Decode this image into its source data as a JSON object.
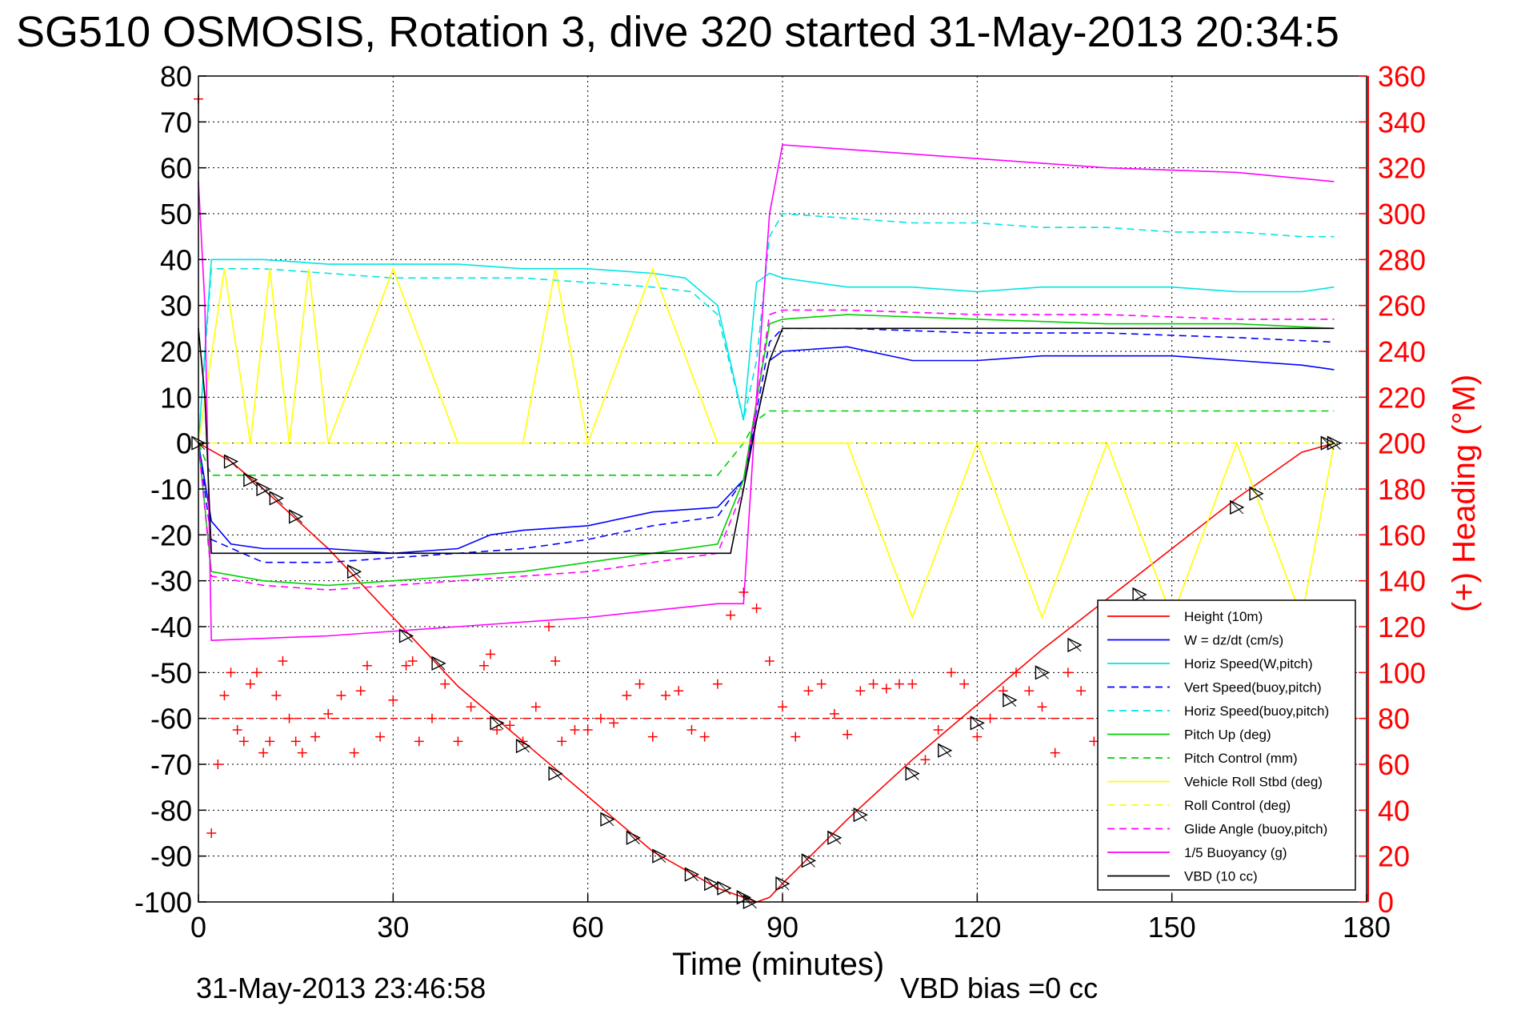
{
  "title": "SG510 OSMOSIS, Rotation 3, dive 320 started 31-May-2013 20:34:5",
  "footer_left": "31-May-2013 23:46:58",
  "footer_right": "VBD bias =0 cc",
  "chart_data": {
    "type": "line",
    "xlabel": "Time (minutes)",
    "ylabel_right": "(+) Heading (°M)",
    "xlim": [
      0,
      180
    ],
    "ylim": [
      -100,
      80
    ],
    "ylim_right": [
      0,
      360
    ],
    "xticks": [
      "0",
      "30",
      "60",
      "90",
      "120",
      "150",
      "180"
    ],
    "yticks": [
      "80",
      "70",
      "60",
      "50",
      "40",
      "30",
      "20",
      "10",
      "0",
      "-10",
      "-20",
      "-30",
      "-40",
      "-50",
      "-60",
      "-70",
      "-80",
      "-90",
      "-100"
    ],
    "yticks_right": [
      "360",
      "340",
      "320",
      "300",
      "280",
      "260",
      "240",
      "220",
      "200",
      "180",
      "160",
      "140",
      "120",
      "100",
      "80",
      "60",
      "40",
      "20",
      "0"
    ],
    "grid": true,
    "legend_position": "bottom-right",
    "series": [
      {
        "name": "Height (10m)",
        "color": "#ff0000",
        "style": "solid",
        "x": [
          0,
          5,
          10,
          20,
          30,
          40,
          50,
          60,
          70,
          80,
          84,
          86,
          88,
          90,
          100,
          110,
          120,
          130,
          140,
          150,
          160,
          170,
          175
        ],
        "y": [
          0,
          -4,
          -10,
          -23,
          -38,
          -53,
          -65,
          -77,
          -89,
          -97,
          -99,
          -100,
          -99,
          -96,
          -82,
          -69,
          -57,
          -45,
          -34,
          -23,
          -12,
          -2,
          0
        ]
      },
      {
        "name": "W = dz/dt (cm/s)",
        "color": "#0000ff",
        "style": "solid",
        "x": [
          0,
          2,
          5,
          10,
          20,
          30,
          40,
          45,
          50,
          60,
          70,
          80,
          84,
          88,
          90,
          100,
          110,
          120,
          130,
          140,
          150,
          160,
          170,
          175
        ],
        "y": [
          0,
          -17,
          -22,
          -23,
          -23,
          -24,
          -23,
          -20,
          -19,
          -18,
          -15,
          -14,
          -8,
          18,
          20,
          21,
          18,
          18,
          19,
          19,
          19,
          18,
          17,
          16
        ]
      },
      {
        "name": "Horiz Speed(W,pitch)",
        "color": "#00e5e5",
        "style": "solid",
        "x": [
          0,
          2,
          10,
          20,
          30,
          40,
          50,
          60,
          70,
          75,
          80,
          84,
          86,
          88,
          90,
          100,
          110,
          120,
          130,
          140,
          150,
          160,
          170,
          175
        ],
        "y": [
          0,
          40,
          40,
          39,
          39,
          39,
          38,
          38,
          37,
          36,
          30,
          5,
          35,
          37,
          36,
          34,
          34,
          33,
          34,
          34,
          34,
          33,
          33,
          34
        ]
      },
      {
        "name": "Vert Speed(buoy,pitch)",
        "color": "#0000ff",
        "style": "dashed",
        "x": [
          0,
          2,
          10,
          20,
          30,
          40,
          50,
          60,
          70,
          80,
          84,
          88,
          90,
          100,
          120,
          140,
          160,
          175
        ],
        "y": [
          0,
          -21,
          -26,
          -26,
          -25,
          -24,
          -23,
          -21,
          -18,
          -16,
          -8,
          22,
          25,
          25,
          24,
          24,
          23,
          22
        ]
      },
      {
        "name": "Horiz Speed(buoy,pitch)",
        "color": "#00e5e5",
        "style": "dashed",
        "x": [
          0,
          2,
          10,
          20,
          30,
          40,
          50,
          60,
          70,
          76,
          80,
          84,
          86,
          88,
          90,
          100,
          110,
          120,
          130,
          140,
          150,
          160,
          170,
          175
        ],
        "y": [
          0,
          38,
          38,
          37,
          36,
          36,
          36,
          35,
          34,
          33,
          28,
          5,
          18,
          45,
          50,
          49,
          48,
          48,
          47,
          47,
          46,
          46,
          45,
          45
        ]
      },
      {
        "name": "Pitch Up (deg)",
        "color": "#00d000",
        "style": "solid",
        "x": [
          0,
          2,
          10,
          20,
          30,
          40,
          50,
          60,
          70,
          80,
          84,
          88,
          90,
          100,
          120,
          140,
          160,
          175
        ],
        "y": [
          0,
          -28,
          -30,
          -31,
          -30,
          -29,
          -28,
          -26,
          -24,
          -22,
          -8,
          26,
          27,
          28,
          27,
          26,
          26,
          25
        ]
      },
      {
        "name": "Pitch Control (mm)",
        "color": "#00d000",
        "style": "dashed",
        "x": [
          0,
          2,
          30,
          60,
          80,
          84,
          86,
          88,
          175
        ],
        "y": [
          0,
          -7,
          -7,
          -7,
          -7,
          0,
          5,
          7,
          7
        ]
      },
      {
        "name": "Vehicle Roll Stbd (deg)",
        "color": "#ffff00",
        "style": "solid",
        "x": [
          0,
          4,
          8,
          11,
          14,
          17,
          20,
          30,
          40,
          50,
          55,
          60,
          70,
          80,
          85,
          90,
          100,
          110,
          120,
          130,
          140,
          150,
          160,
          170,
          175
        ],
        "y": [
          0,
          38,
          0,
          38,
          0,
          38,
          0,
          38,
          0,
          0,
          38,
          0,
          38,
          0,
          0,
          0,
          0,
          -38,
          0,
          -38,
          0,
          -38,
          0,
          -38,
          0
        ]
      },
      {
        "name": "Roll Control (deg)",
        "color": "#ffff00",
        "style": "dashed",
        "x": [
          0,
          20,
          40,
          60,
          80,
          85,
          90,
          120,
          150,
          175
        ],
        "y": [
          0,
          0,
          0,
          0,
          0,
          0,
          0,
          0,
          0,
          0
        ]
      },
      {
        "name": "Glide Angle (buoy,pitch)",
        "color": "#ff00ff",
        "style": "dashed",
        "x": [
          0,
          2,
          10,
          20,
          30,
          40,
          50,
          60,
          70,
          80,
          84,
          88,
          90,
          100,
          120,
          140,
          160,
          175
        ],
        "y": [
          0,
          -29,
          -31,
          -32,
          -31,
          -30,
          -29,
          -28,
          -26,
          -24,
          -10,
          28,
          29,
          29,
          28,
          28,
          27,
          27
        ]
      },
      {
        "name": "1/5 Buoyancy (g)",
        "color": "#ff00ff",
        "style": "solid",
        "x": [
          0,
          1,
          2,
          20,
          40,
          60,
          80,
          84,
          86,
          88,
          90,
          100,
          120,
          140,
          160,
          175
        ],
        "y": [
          57,
          30,
          -43,
          -42,
          -40,
          -38,
          -35,
          -35,
          10,
          50,
          65,
          64,
          62,
          60,
          59,
          57
        ]
      },
      {
        "name": "VBD (10 cc)",
        "color": "#000000",
        "style": "solid",
        "x": [
          0,
          1,
          2,
          82,
          84,
          86,
          88,
          90,
          175
        ],
        "y": [
          25,
          10,
          -24,
          -24,
          -10,
          5,
          18,
          25,
          25
        ]
      }
    ],
    "heading_series": {
      "marker": "+",
      "color": "#ff0000",
      "axis": "right",
      "x": [
        0,
        2,
        3,
        4,
        5,
        6,
        7,
        8,
        9,
        10,
        11,
        12,
        13,
        14,
        15,
        16,
        18,
        20,
        22,
        24,
        25,
        26,
        28,
        30,
        32,
        33,
        34,
        36,
        38,
        40,
        42,
        44,
        45,
        46,
        48,
        50,
        52,
        54,
        55,
        56,
        58,
        60,
        62,
        64,
        66,
        68,
        70,
        72,
        74,
        76,
        78,
        80,
        82,
        84,
        86,
        88,
        90,
        92,
        94,
        96,
        98,
        100,
        102,
        104,
        106,
        108,
        110,
        112,
        114,
        116,
        118,
        120,
        122,
        124,
        126,
        128,
        130,
        132,
        134,
        136,
        138,
        140
      ],
      "y": [
        350,
        30,
        60,
        90,
        100,
        75,
        70,
        95,
        100,
        65,
        70,
        90,
        105,
        80,
        70,
        65,
        72,
        82,
        90,
        65,
        92,
        103,
        72,
        88,
        103,
        105,
        70,
        80,
        95,
        70,
        85,
        103,
        108,
        75,
        77,
        70,
        85,
        120,
        105,
        70,
        75,
        75,
        80,
        78,
        90,
        95,
        72,
        90,
        92,
        75,
        72,
        95,
        125,
        135,
        128,
        105,
        85,
        72,
        92,
        95,
        82,
        73,
        92,
        95,
        93,
        95,
        95,
        62,
        75,
        100,
        95,
        72,
        80,
        92,
        100,
        92,
        85,
        65,
        100,
        92,
        70,
        62
      ]
    },
    "reference_line": {
      "color": "#ff0000",
      "style": "dashed",
      "y_right": 80
    },
    "depth_markers": {
      "x": [
        0,
        5,
        8,
        10,
        12,
        15,
        24,
        32,
        37,
        46,
        50,
        55,
        63,
        67,
        71,
        76,
        79,
        81,
        84,
        85,
        90,
        94,
        98,
        102,
        110,
        115,
        120,
        125,
        130,
        135,
        145,
        160,
        163,
        174,
        175
      ],
      "y": [
        0,
        -4,
        -8,
        -10,
        -12,
        -16,
        -28,
        -42,
        -48,
        -61,
        -66,
        -72,
        -82,
        -86,
        -90,
        -94,
        -96,
        -97,
        -99,
        -100,
        -96,
        -91,
        -86,
        -81,
        -72,
        -67,
        -61,
        -56,
        -50,
        -44,
        -33,
        -14,
        -11,
        0,
        0
      ]
    }
  }
}
